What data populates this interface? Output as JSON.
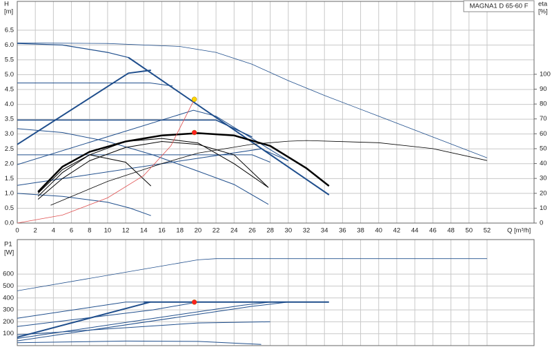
{
  "chart_data": [
    {
      "type": "line",
      "title": "MAGNA1 D 65-60 F",
      "y_label": "H",
      "y_unit": "[m]",
      "y2_label": "eta",
      "y2_unit": "[%]",
      "x_label": "Q [m³/h]",
      "xlim": [
        0,
        57.2
      ],
      "ylim": [
        0,
        7.47
      ],
      "y2lim": [
        0,
        149
      ],
      "grid": true,
      "xticks": [
        0,
        2,
        4,
        6,
        8,
        10,
        12,
        14,
        16,
        18,
        20,
        22,
        24,
        26,
        28,
        30,
        32,
        34,
        36,
        38,
        40,
        42,
        44,
        46,
        48,
        50,
        52
      ],
      "yticks": [
        {
          "value": 0,
          "label": "0.0"
        },
        0.5,
        {
          "value": 1,
          "label": "1.0"
        },
        1.5,
        {
          "value": 2,
          "label": "2.0"
        },
        2.5,
        {
          "value": 3,
          "label": "3.0"
        },
        3.5,
        {
          "value": 4,
          "label": "4.0"
        },
        4.5,
        {
          "value": 5,
          "label": "5.0"
        },
        5.5,
        {
          "value": 6,
          "label": "6.0"
        },
        6.5
      ],
      "y2ticks": [
        0,
        10,
        20,
        30,
        40,
        50,
        60,
        70,
        80,
        90,
        100
      ],
      "series": [
        {
          "color": "#1f4e8c",
          "width": 0.8,
          "x": [
            0,
            10,
            18,
            22,
            26,
            30,
            34,
            40,
            46,
            52
          ],
          "values": [
            6.07,
            6.05,
            5.95,
            5.75,
            5.35,
            4.8,
            4.3,
            3.6,
            2.9,
            2.2
          ]
        },
        {
          "color": "#1f4e8c",
          "width": 1.2,
          "x": [
            0,
            5,
            10,
            12.3,
            34.5
          ],
          "values": [
            6.05,
            6.0,
            5.75,
            5.58,
            0.95
          ]
        },
        {
          "color": "#1f4e8c",
          "width": 2,
          "x": [
            0,
            12.3,
            14.8
          ],
          "values": [
            2.65,
            5.05,
            5.15
          ]
        },
        {
          "color": "#1f4e8c",
          "width": 2,
          "x": [
            12.3,
            34.5
          ],
          "values": [
            5.58,
            0.95
          ]
        },
        {
          "color": "#1f4e8c",
          "width": 1,
          "x": [
            0,
            14.7,
            17.2
          ],
          "values": [
            4.72,
            4.72,
            4.62
          ]
        },
        {
          "color": "#1f4e8c",
          "width": 1.5,
          "x": [
            0,
            22,
            26
          ],
          "values": [
            3.47,
            3.47,
            2.9
          ]
        },
        {
          "color": "#1f4e8c",
          "width": 1,
          "x": [
            0,
            26,
            28
          ],
          "values": [
            2.3,
            2.3,
            2.05
          ]
        },
        {
          "color": "#1f4e8c",
          "width": 1,
          "x": [
            0,
            19.5,
            22,
            30
          ],
          "values": [
            1.97,
            3.8,
            3.6,
            2.1
          ]
        },
        {
          "color": "#1f4e8c",
          "width": 1,
          "x": [
            0,
            27,
            30
          ],
          "values": [
            1.27,
            2.5,
            2.1
          ]
        },
        {
          "color": "#1f4e8c",
          "width": 1,
          "x": [
            0,
            5,
            10,
            15,
            20,
            24,
            27.8
          ],
          "values": [
            3.18,
            3.05,
            2.75,
            2.3,
            1.75,
            1.3,
            0.63
          ]
        },
        {
          "color": "#1f4e8c",
          "width": 1,
          "x": [
            0,
            5,
            10,
            12.5,
            14.8
          ],
          "values": [
            1.0,
            0.9,
            0.7,
            0.5,
            0.25
          ]
        },
        {
          "color": "#000000",
          "width": 0.8,
          "axis": "y2",
          "x": [
            3.7,
            10,
            16,
            20,
            26,
            30,
            32,
            40,
            46,
            52
          ],
          "values": [
            12,
            28,
            40,
            47,
            53,
            55,
            55.5,
            54,
            50,
            42
          ]
        },
        {
          "color": "#000000",
          "width": 1,
          "x": [
            2.3,
            5,
            8,
            12,
            16,
            20,
            24,
            27.8
          ],
          "values": [
            0.8,
            1.5,
            2.1,
            2.55,
            2.75,
            2.65,
            2.3,
            1.2
          ]
        },
        {
          "color": "#000000",
          "width": 1,
          "x": [
            2.3,
            5,
            8,
            12,
            16,
            20,
            24,
            27.8
          ],
          "values": [
            0.9,
            1.7,
            2.3,
            2.75,
            2.85,
            2.7,
            2.0,
            1.2
          ]
        },
        {
          "color": "#000000",
          "width": 1,
          "x": [
            2.3,
            5,
            8,
            12,
            14.8
          ],
          "values": [
            1.0,
            1.8,
            2.3,
            2.05,
            1.25
          ]
        },
        {
          "color": "#000000",
          "width": 2.5,
          "x": [
            2.3,
            5,
            8,
            12,
            16,
            20,
            24,
            28,
            32,
            34.5
          ],
          "values": [
            1.05,
            1.9,
            2.4,
            2.75,
            2.95,
            3.03,
            2.95,
            2.6,
            1.85,
            1.25
          ]
        },
        {
          "color": "#e05050",
          "width": 0.8,
          "x": [
            0,
            5,
            10,
            14,
            17,
            19.6
          ],
          "values": [
            0,
            0.27,
            0.85,
            1.6,
            2.6,
            4.17
          ]
        },
        {
          "color": "#ffd700",
          "marker": true,
          "x": [
            19.6
          ],
          "values": [
            4.17
          ]
        },
        {
          "color": "#ff2020",
          "marker": true,
          "x": [
            19.6
          ],
          "values": [
            3.05
          ]
        }
      ]
    },
    {
      "type": "line",
      "y_label": "P1",
      "y_unit": "[W]",
      "xlim": [
        0,
        57.2
      ],
      "ylim": [
        0,
        890
      ],
      "grid": true,
      "yticks": [
        100,
        200,
        300,
        400,
        500,
        600
      ],
      "series": [
        {
          "color": "#1f4e8c",
          "width": 0.8,
          "x": [
            0,
            20,
            22,
            52
          ],
          "values": [
            460,
            720,
            730,
            730
          ]
        },
        {
          "color": "#1f4e8c",
          "width": 2,
          "x": [
            14,
            34.5
          ],
          "values": [
            365,
            365
          ]
        },
        {
          "color": "#1f4e8c",
          "width": 1,
          "x": [
            0,
            12,
            14
          ],
          "values": [
            230,
            365,
            365
          ]
        },
        {
          "color": "#1f4e8c",
          "width": 1,
          "x": [
            0,
            15,
            20
          ],
          "values": [
            160,
            300,
            365
          ]
        },
        {
          "color": "#1f4e8c",
          "width": 2,
          "x": [
            0,
            14.7
          ],
          "values": [
            70,
            365
          ]
        },
        {
          "color": "#1f4e8c",
          "width": 1,
          "x": [
            0,
            25,
            28
          ],
          "values": [
            60,
            340,
            365
          ]
        },
        {
          "color": "#1f4e8c",
          "width": 1,
          "x": [
            0,
            20,
            28
          ],
          "values": [
            90,
            190,
            200
          ]
        },
        {
          "color": "#1f4e8c",
          "width": 1,
          "x": [
            0,
            26,
            30
          ],
          "values": [
            40,
            330,
            365
          ]
        },
        {
          "color": "#1f4e8c",
          "width": 1,
          "x": [
            0,
            12,
            20,
            27
          ],
          "values": [
            25,
            38,
            35,
            10
          ]
        },
        {
          "color": "#ff2020",
          "marker": true,
          "x": [
            19.6
          ],
          "values": [
            365
          ]
        }
      ]
    }
  ]
}
